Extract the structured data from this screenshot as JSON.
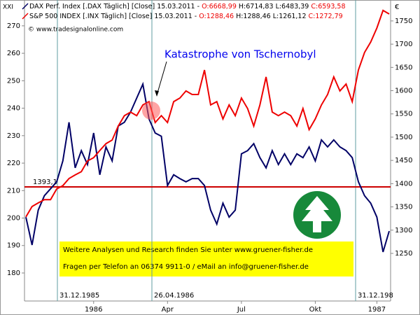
{
  "chart_data": {
    "type": "line",
    "unit_left": "XXI",
    "unit_right": "€",
    "source": "© www.tradesignalonline.com",
    "annotation": "Katastrophe von Tschernobyl",
    "event_labels": [
      "31.12.1985",
      "26.04.1986",
      "31.12.198"
    ],
    "footer": [
      "Weitere Analysen und Research finden Sie unter www.gruener-fisher.de",
      "Fragen per Telefon an 06374 9911-0 / eMail an info@gruener-fisher.de"
    ],
    "categories": [
      null,
      null,
      null,
      null,
      null,
      null,
      null,
      null,
      null,
      null,
      null,
      "1986",
      null,
      null,
      null,
      null,
      null,
      null,
      null,
      null,
      null,
      null,
      null,
      "Apr",
      null,
      null,
      null,
      null,
      null,
      null,
      null,
      null,
      null,
      null,
      null,
      "Jul",
      null,
      null,
      null,
      null,
      null,
      null,
      null,
      null,
      null,
      null,
      null,
      "Okt",
      null,
      null,
      null,
      null,
      null,
      null,
      null,
      null,
      null,
      "1987",
      null,
      null
    ],
    "ylim": [
      169.8,
      279.4
    ],
    "yticks": [
      180,
      190,
      200,
      210,
      220,
      230,
      240,
      250,
      260,
      270
    ],
    "y2lim": [
      1147.6,
      1795
    ],
    "y2ticks": [
      1250,
      1300,
      1350,
      1400,
      1450,
      1500,
      1550,
      1600,
      1650,
      1700,
      1750
    ],
    "reference_line": {
      "value": 1393.1,
      "label": "1393,1",
      "color": "#cc0000"
    },
    "series": [
      {
        "name": "DAX Perf. Index [.DAX  Täglich] [Close] 15.03.2011 -",
        "stats": [
          "O:6668,99",
          "H:6714,83",
          "L:6483,39",
          "C:6593,58"
        ],
        "color": "#000066",
        "axis": "y2",
        "values": [
          1328,
          1268,
          1343,
          1374,
          1389,
          1404,
          1449,
          1532,
          1434,
          1471,
          1441,
          1509,
          1419,
          1479,
          1449,
          1524,
          1532,
          1554,
          1584,
          1614,
          1539,
          1509,
          1502,
          1396,
          1419,
          1411,
          1404,
          1411,
          1411,
          1396,
          1343,
          1313,
          1358,
          1328,
          1343,
          1464,
          1471,
          1486,
          1456,
          1434,
          1471,
          1441,
          1464,
          1441,
          1464,
          1456,
          1479,
          1449,
          1494,
          1479,
          1494,
          1479,
          1471,
          1456,
          1404,
          1374,
          1358,
          1328,
          1253,
          1298
        ]
      },
      {
        "name": "S&P 500 INDEX [.INX  Täglich] [Close] 15.03.2011 -",
        "stats": [
          "O:1288,46",
          "H:1288,46",
          "L:1261,12",
          "C:1272,79"
        ],
        "color": "#ee0000",
        "values": [
          200.4,
          204.2,
          205.5,
          206.7,
          206.7,
          210.6,
          211.8,
          214.4,
          215.7,
          216.9,
          220.8,
          222.0,
          224.6,
          227.1,
          228.4,
          233.5,
          237.3,
          238.6,
          237.3,
          241.2,
          242.4,
          234.8,
          237.3,
          234.8,
          242.4,
          243.7,
          246.3,
          245.0,
          245.0,
          253.9,
          241.2,
          242.4,
          236.1,
          241.2,
          237.3,
          243.7,
          239.9,
          233.5,
          241.2,
          251.4,
          238.6,
          237.3,
          238.6,
          237.3,
          233.5,
          239.9,
          232.2,
          236.1,
          241.2,
          245.0,
          251.4,
          246.3,
          248.8,
          242.4,
          253.9,
          260.3,
          264.1,
          269.2,
          275.6,
          274.3
        ]
      }
    ]
  }
}
